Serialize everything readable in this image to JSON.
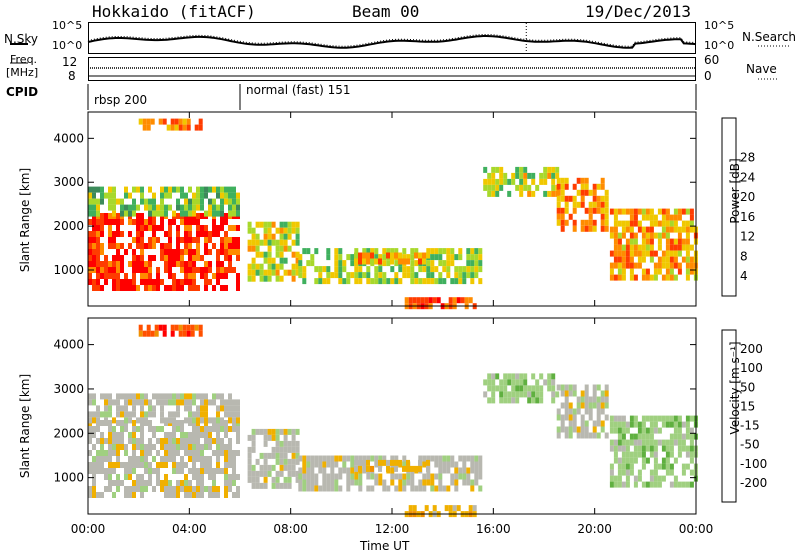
{
  "header": {
    "station": "Hokkaido (fitACF)",
    "beam": "Beam 00",
    "date": "19/Dec/2013"
  },
  "noise_panel": {
    "left_label": "N.Sky",
    "left_ticks": [
      "10^5",
      "10^0"
    ],
    "right_label": "N.Search",
    "right_ticks": [
      "10^5",
      "10^0"
    ]
  },
  "freq_panel": {
    "left_label_1": "Freq.",
    "left_label_2": "[MHz]",
    "left_ticks": [
      "12",
      "8"
    ],
    "right_label": "Nave",
    "right_ticks": [
      "60",
      "0"
    ]
  },
  "cpid": {
    "label": "CPID",
    "segments": [
      {
        "name": "rbsp 200",
        "start_hour": 0,
        "end_hour": 6.0
      },
      {
        "name": "normal (fast) 151",
        "start_hour": 6.0,
        "end_hour": 24
      }
    ]
  },
  "colors": {
    "power": [
      "#0000ff",
      "#2850c0",
      "#3c8a5a",
      "#3fb05e",
      "#a8d82b",
      "#f0c800",
      "#ff8c00",
      "#ff3c00",
      "#ff0000"
    ],
    "velocity": [
      "#ff0000",
      "#ff5000",
      "#f09000",
      "#f0b000",
      "#b8b8b0",
      "#a0d080",
      "#60b040",
      "#2a7a3a",
      "#2070a0",
      "#1030c0"
    ]
  },
  "chart_data": [
    {
      "type": "heatmap",
      "name": "power",
      "xlabel": "",
      "ylabel": "Slant Range [km]",
      "xlim": [
        0,
        24
      ],
      "ylim": [
        180,
        4600
      ],
      "yticks": [
        "1000",
        "2000",
        "3000",
        "4000"
      ],
      "colorbar_label": "Power [dB]",
      "colorbar_ticks": [
        "4",
        "8",
        "12",
        "16",
        "20",
        "24",
        "28"
      ],
      "colorbar_range": [
        0,
        32
      ]
    },
    {
      "type": "heatmap",
      "name": "velocity",
      "xlabel": "Time UT",
      "ylabel": "Slant Range [km]",
      "xlim": [
        0,
        24
      ],
      "ylim": [
        180,
        4600
      ],
      "xticks": [
        "00:00",
        "04:00",
        "08:00",
        "12:00",
        "16:00",
        "20:00",
        "00:00"
      ],
      "yticks": [
        "1000",
        "2000",
        "3000",
        "4000"
      ],
      "colorbar_label": "Velocity [m s⁻¹]",
      "colorbar_ticks": [
        "200",
        "100",
        "50",
        "15",
        "-15",
        "-50",
        "-100",
        "-200"
      ]
    }
  ]
}
